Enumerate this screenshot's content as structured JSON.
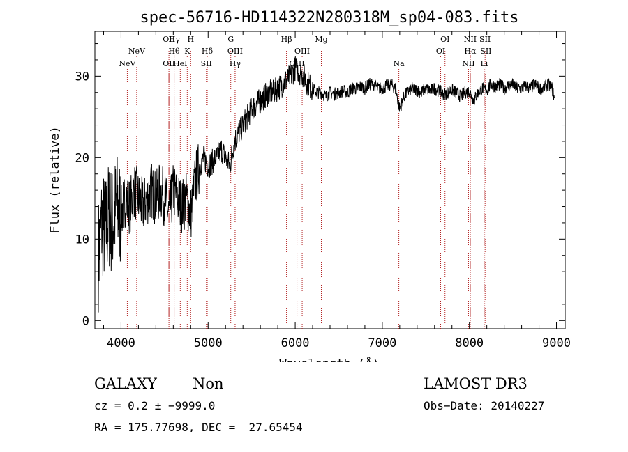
{
  "chart_data": {
    "type": "line",
    "title": "spec-56716-HD114322N280318M_sp04-083.fits",
    "xlabel": "Wavelength (Å)",
    "ylabel": "Flux (relative)",
    "xlim": [
      3700,
      9100
    ],
    "ylim": [
      -1,
      35.5
    ],
    "xticks": [
      4000,
      5000,
      6000,
      7000,
      8000,
      9000
    ],
    "yticks": [
      0,
      10,
      20,
      30
    ],
    "line_color": "#000000",
    "marker_color": "#b22222",
    "series": [
      {
        "x": [
          3740,
          3780,
          3820,
          3860,
          3900,
          3950,
          4000,
          4050,
          4100,
          4150,
          4200,
          4250,
          4300,
          4350,
          4400,
          4450,
          4500,
          4550,
          4600,
          4650,
          4700,
          4750,
          4800,
          4850,
          4900,
          4950,
          5000,
          5050,
          5100,
          5150,
          5200,
          5250,
          5300,
          5350,
          5400,
          5450,
          5500,
          5550,
          5600,
          5650,
          5700,
          5750,
          5800,
          5850,
          5900,
          5950,
          6000,
          6050,
          6100,
          6150,
          6200,
          6250,
          6300,
          6350,
          6400,
          6450,
          6500,
          6550,
          6600,
          6650,
          6700,
          6750,
          6800,
          6850,
          6900,
          6950,
          7000,
          7050,
          7100,
          7150,
          7200,
          7250,
          7300,
          7350,
          7400,
          7450,
          7500,
          7550,
          7600,
          7650,
          7700,
          7750,
          7800,
          7850,
          7900,
          7950,
          8000,
          8050,
          8100,
          8150,
          8200,
          8250,
          8300,
          8350,
          8400,
          8450,
          8500,
          8550,
          8600,
          8650,
          8700,
          8750,
          8800,
          8850,
          8900,
          8950,
          8980
        ],
        "y": [
          8,
          12,
          11,
          13,
          12,
          14,
          13,
          15,
          14,
          16,
          15,
          14,
          15,
          16,
          15,
          16,
          15,
          13,
          16,
          15,
          14,
          15,
          13,
          17,
          19,
          20,
          19,
          19.5,
          20,
          21,
          20,
          19,
          22,
          23,
          24,
          25,
          26,
          26.5,
          27,
          27.5,
          28,
          28,
          28.5,
          29,
          29.5,
          30,
          31,
          30.5,
          30,
          29,
          28.5,
          28,
          28,
          27.5,
          28,
          27.8,
          28,
          28.2,
          28,
          28.5,
          28.5,
          28.7,
          28.5,
          29,
          29,
          28.5,
          28.5,
          28.8,
          29,
          28.5,
          26,
          27.5,
          28.2,
          28.5,
          28.3,
          28,
          28.5,
          28.2,
          28.5,
          28.2,
          27.8,
          28,
          28.3,
          28,
          27.5,
          28,
          28.2,
          27,
          28,
          28.5,
          28.3,
          29,
          28.7,
          29,
          28.5,
          28.8,
          29,
          28.5,
          28.5,
          28.8,
          28.5,
          29,
          28.5,
          28.5,
          29,
          28.5,
          27
        ]
      }
    ],
    "lines": [
      {
        "name": "NeV",
        "wavelength": 4072,
        "row": 2
      },
      {
        "name": "NeV",
        "wavelength": 4180,
        "row": 1
      },
      {
        "name": "OII",
        "wavelength": 4550,
        "row": 0
      },
      {
        "name": "OII",
        "wavelength": 4550,
        "row": 2
      },
      {
        "name": "Hγ",
        "wavelength": 4610,
        "row": 0
      },
      {
        "name": "Hθ",
        "wavelength": 4610,
        "row": 1
      },
      {
        "name": "HeI",
        "wavelength": 4680,
        "row": 2
      },
      {
        "name": "H",
        "wavelength": 4800,
        "row": 0
      },
      {
        "name": "K",
        "wavelength": 4760,
        "row": 1
      },
      {
        "name": "Hδ",
        "wavelength": 4990,
        "row": 1
      },
      {
        "name": "SII",
        "wavelength": 4980,
        "row": 2
      },
      {
        "name": "G",
        "wavelength": 5260,
        "row": 0
      },
      {
        "name": "OIII",
        "wavelength": 5310,
        "row": 1
      },
      {
        "name": "Hγ",
        "wavelength": 5310,
        "row": 2
      },
      {
        "name": "Hβ",
        "wavelength": 5900,
        "row": 0
      },
      {
        "name": "OIII",
        "wavelength": 6080,
        "row": 1
      },
      {
        "name": "OIII",
        "wavelength": 6020,
        "row": 2
      },
      {
        "name": "Mg",
        "wavelength": 6300,
        "row": 0
      },
      {
        "name": "Na",
        "wavelength": 7190,
        "row": 2
      },
      {
        "name": "OI",
        "wavelength": 7720,
        "row": 0
      },
      {
        "name": "OI",
        "wavelength": 7670,
        "row": 1
      },
      {
        "name": "NII",
        "wavelength": 8010,
        "row": 0
      },
      {
        "name": "Hα",
        "wavelength": 8010,
        "row": 1
      },
      {
        "name": "NII",
        "wavelength": 7990,
        "row": 2
      },
      {
        "name": "SII",
        "wavelength": 8180,
        "row": 0
      },
      {
        "name": "SII",
        "wavelength": 8190,
        "row": 1
      },
      {
        "name": "Li",
        "wavelength": 8170,
        "row": 2
      }
    ],
    "grid": false
  },
  "info": {
    "object_class": "GALAXY",
    "subclass": "Non",
    "cz": "cz = 0.2 ± −9999.0",
    "coords": "RA = 175.77698, DEC =  27.65454",
    "survey": "LAMOST DR3",
    "obs_date": "Obs−Date: 20140227"
  }
}
